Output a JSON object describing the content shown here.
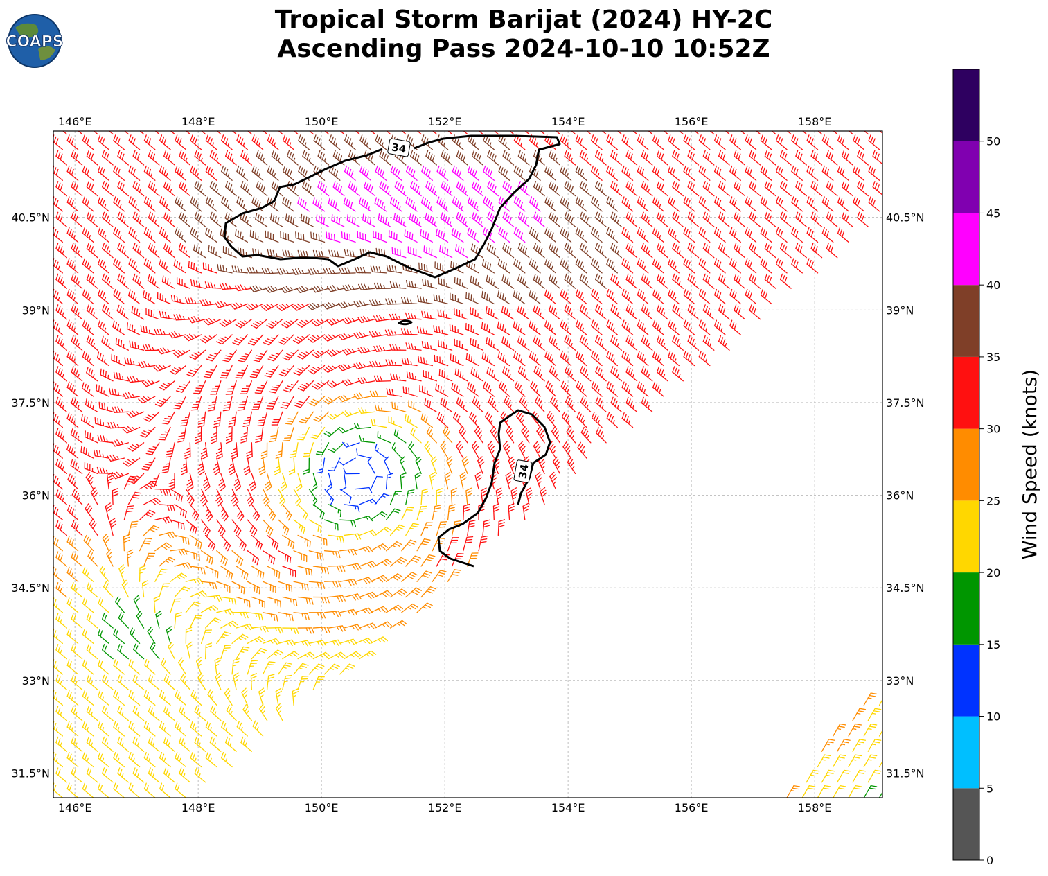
{
  "title": {
    "line1": "Tropical Storm Barijat (2024) HY-2C",
    "line2": "Ascending Pass 2024-10-10 10:52Z"
  },
  "logo": {
    "text": "COAPS",
    "icon": "globe-logo-icon"
  },
  "map": {
    "lon_range": [
      145.65,
      159.1
    ],
    "lat_range": [
      31.1,
      41.9
    ],
    "lon_ticks": [
      "146°E",
      "148°E",
      "150°E",
      "152°E",
      "154°E",
      "156°E",
      "158°E"
    ],
    "lon_tick_values": [
      146,
      148,
      150,
      152,
      154,
      156,
      158
    ],
    "lat_ticks": [
      "31.5°N",
      "33°N",
      "34.5°N",
      "36°N",
      "37.5°N",
      "39°N",
      "40.5°N"
    ],
    "lat_tick_values": [
      31.5,
      33,
      34.5,
      36,
      37.5,
      39,
      40.5
    ],
    "grid": true,
    "storm_center": [
      150.6,
      36.3
    ],
    "contour_label": "34",
    "contour_labels": [
      {
        "text": "34",
        "lon": 151.4,
        "lat": 41.6
      },
      {
        "text": "34",
        "lon": 153.3,
        "lat": 36.4
      }
    ]
  },
  "colorbar": {
    "label": "Wind Speed (knots)",
    "tick_labels": [
      "0",
      "5",
      "10",
      "15",
      "20",
      "25",
      "30",
      "35",
      "40",
      "45",
      "50"
    ],
    "bins": [
      {
        "min": 0,
        "max": 5,
        "color": "#555555"
      },
      {
        "min": 5,
        "max": 10,
        "color": "#00bfff"
      },
      {
        "min": 10,
        "max": 15,
        "color": "#0033ff"
      },
      {
        "min": 15,
        "max": 20,
        "color": "#009600"
      },
      {
        "min": 20,
        "max": 25,
        "color": "#ffd700"
      },
      {
        "min": 25,
        "max": 30,
        "color": "#ff8c00"
      },
      {
        "min": 30,
        "max": 35,
        "color": "#ff1010"
      },
      {
        "min": 35,
        "max": 40,
        "color": "#7f3f28"
      },
      {
        "min": 40,
        "max": 45,
        "color": "#ff00ff"
      },
      {
        "min": 45,
        "max": 50,
        "color": "#8000b0"
      },
      {
        "min": 50,
        "max": 55,
        "color": "#2e0060"
      }
    ]
  }
}
